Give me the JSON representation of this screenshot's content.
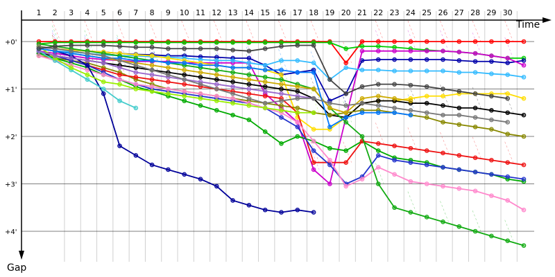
{
  "chart_data": {
    "type": "line",
    "title": "",
    "xlabel": "Time",
    "ylabel": "Gap",
    "y_inverted": true,
    "y_unit": "minutes",
    "ylim": [
      0,
      4.6
    ],
    "grid": true,
    "legend": "none",
    "x_ticks": [
      "1",
      "2",
      "3",
      "4",
      "5",
      "6",
      "7",
      "8",
      "9",
      "10",
      "11",
      "12",
      "13",
      "14",
      "15",
      "16",
      "17",
      "18",
      "19",
      "20",
      "21",
      "22",
      "23",
      "24",
      "25",
      "26",
      "27",
      "28",
      "29",
      "30"
    ],
    "y_ticks": [
      {
        "value": 0,
        "label": "+0'"
      },
      {
        "value": 1,
        "label": "+1'"
      },
      {
        "value": 2,
        "label": "+2'"
      },
      {
        "value": 3,
        "label": "+3'"
      },
      {
        "value": 4,
        "label": "+4'"
      }
    ],
    "series": [
      {
        "color": "#ff0000",
        "x": [
          1,
          2,
          3,
          4,
          5,
          6,
          7,
          8,
          9,
          10,
          11,
          12,
          13,
          14,
          15,
          16,
          17,
          18,
          19,
          20,
          21,
          22,
          23,
          24,
          25,
          26,
          27,
          28,
          29,
          30,
          31
        ],
        "y": [
          0,
          0,
          0,
          0,
          0,
          0,
          0,
          0,
          0,
          0,
          0,
          0,
          0,
          0,
          0,
          0,
          0,
          0,
          0,
          0.45,
          0,
          0,
          0,
          0,
          0,
          0,
          0,
          0,
          0,
          0,
          0
        ]
      },
      {
        "color": "#00cc00",
        "x": [
          1,
          2,
          3,
          4,
          5,
          6,
          7,
          8,
          9,
          10,
          11,
          12,
          13,
          14,
          15,
          16,
          17,
          18,
          19,
          20,
          21,
          22,
          23,
          24,
          25,
          26,
          27,
          28,
          29,
          30,
          31
        ],
        "y": [
          0.05,
          0.02,
          0.02,
          0.02,
          0.02,
          0.02,
          0.02,
          0.02,
          0.02,
          0.02,
          0.02,
          0.02,
          0.02,
          0.02,
          0.02,
          0.02,
          0.02,
          0.02,
          0.02,
          0.15,
          0.1,
          0.1,
          0.12,
          0.15,
          0.18,
          0.2,
          0.22,
          0.25,
          0.3,
          0.35,
          0.35
        ]
      },
      {
        "color": "#0000aa",
        "x": [
          1,
          2,
          3,
          4,
          5,
          6,
          7,
          8,
          9,
          10,
          11,
          12,
          13,
          14,
          15,
          16,
          17,
          18,
          19,
          20,
          21,
          22,
          23,
          24,
          25,
          26,
          27,
          28,
          29,
          30,
          31
        ],
        "y": [
          0.12,
          0.15,
          0.18,
          0.2,
          0.22,
          0.25,
          0.27,
          0.28,
          0.3,
          0.3,
          0.32,
          0.33,
          0.35,
          0.35,
          0.5,
          0.7,
          0.65,
          0.6,
          1.25,
          1.1,
          0.4,
          0.38,
          0.38,
          0.38,
          0.38,
          0.38,
          0.4,
          0.42,
          0.42,
          0.45,
          0.4
        ]
      },
      {
        "color": "#cc00cc",
        "x": [
          1,
          2,
          3,
          4,
          5,
          6,
          7,
          8,
          9,
          10,
          11,
          12,
          13,
          14,
          15,
          16,
          17,
          18,
          19,
          20,
          21,
          22,
          23,
          24,
          25,
          26,
          27,
          28,
          29,
          30,
          31
        ],
        "y": [
          0.2,
          0.25,
          0.3,
          0.35,
          0.38,
          0.4,
          0.42,
          0.42,
          0.42,
          0.45,
          0.45,
          0.45,
          0.45,
          0.45,
          1.1,
          1.4,
          1.7,
          2.7,
          3.0,
          1.6,
          0.2,
          0.2,
          0.2,
          0.2,
          0.2,
          0.2,
          0.22,
          0.25,
          0.3,
          0.35,
          0.5
        ]
      },
      {
        "color": "#33bbff",
        "x": [
          1,
          2,
          3,
          4,
          5,
          6,
          7,
          8,
          9,
          10,
          11,
          12,
          13,
          14,
          15,
          16,
          17,
          18,
          19,
          20,
          21,
          22,
          23,
          24,
          25,
          26,
          27,
          28,
          29,
          30,
          31
        ],
        "y": [
          0.15,
          0.2,
          0.22,
          0.25,
          0.28,
          0.3,
          0.3,
          0.32,
          0.33,
          0.35,
          0.38,
          0.4,
          0.4,
          0.45,
          0.5,
          0.4,
          0.4,
          0.45,
          0.8,
          0.55,
          0.6,
          0.6,
          0.62,
          0.62,
          0.62,
          0.62,
          0.65,
          0.65,
          0.68,
          0.7,
          0.75
        ]
      },
      {
        "color": "#ffdd00",
        "x": [
          1,
          2,
          3,
          4,
          5,
          6,
          7,
          8,
          9,
          10,
          11,
          12,
          13,
          14,
          15,
          16,
          17,
          18,
          19,
          20,
          21,
          22,
          23,
          24,
          25,
          26,
          27,
          28,
          29,
          30,
          31
        ],
        "y": [
          0.1,
          0.15,
          0.18,
          0.2,
          0.22,
          0.25,
          0.28,
          0.3,
          0.35,
          0.4,
          0.45,
          0.5,
          0.55,
          0.55,
          0.6,
          0.7,
          1.6,
          1.85,
          1.85,
          1.6,
          1.3,
          1.25,
          1.25,
          1.2,
          1.15,
          1.15,
          1.1,
          1.1,
          1.1,
          1.1,
          1.2
        ]
      },
      {
        "color": "#000000",
        "x": [
          1,
          2,
          3,
          4,
          5,
          6,
          7,
          8,
          9,
          10,
          11,
          12,
          13,
          14,
          15,
          16,
          17,
          18,
          19,
          20,
          21,
          22,
          23,
          24,
          25,
          26,
          27,
          28,
          29,
          30,
          31
        ],
        "y": [
          0.25,
          0.3,
          0.35,
          0.4,
          0.45,
          0.5,
          0.55,
          0.6,
          0.65,
          0.7,
          0.75,
          0.8,
          0.85,
          0.9,
          0.95,
          1.0,
          1.05,
          1.2,
          1.55,
          1.6,
          1.3,
          1.25,
          1.25,
          1.3,
          1.3,
          1.35,
          1.4,
          1.4,
          1.45,
          1.5,
          1.55
        ]
      },
      {
        "color": "#888800",
        "x": [
          1,
          2,
          3,
          4,
          5,
          6,
          7,
          8,
          9,
          10,
          11,
          12,
          13,
          14,
          15,
          16,
          17,
          18,
          19,
          20,
          21,
          22,
          23,
          24,
          25,
          26,
          27,
          28,
          29,
          30,
          31
        ],
        "y": [
          0.3,
          0.35,
          0.4,
          0.45,
          0.55,
          0.65,
          0.8,
          0.9,
          1.0,
          1.05,
          1.1,
          1.15,
          1.2,
          1.25,
          1.3,
          1.35,
          1.4,
          1.5,
          1.55,
          1.5,
          1.45,
          1.45,
          1.5,
          1.55,
          1.6,
          1.7,
          1.75,
          1.8,
          1.85,
          1.95,
          2.0
        ]
      },
      {
        "color": "#00aa00",
        "x": [
          1,
          2,
          3,
          4,
          5,
          6,
          7,
          8,
          9,
          10,
          11,
          12,
          13,
          14,
          15,
          16,
          17,
          18,
          19,
          20,
          21,
          22,
          23,
          24,
          25,
          26,
          27,
          28,
          29,
          30,
          31
        ],
        "y": [
          0.25,
          0.35,
          0.45,
          0.55,
          0.7,
          0.8,
          0.95,
          1.05,
          1.15,
          1.25,
          1.35,
          1.45,
          1.55,
          1.65,
          1.9,
          2.15,
          2.0,
          2.1,
          2.25,
          2.3,
          2.1,
          2.3,
          2.45,
          2.5,
          2.55,
          2.65,
          2.7,
          2.75,
          2.8,
          2.9,
          2.95
        ]
      },
      {
        "color": "#ee1111",
        "x": [
          1,
          2,
          3,
          4,
          5,
          6,
          7,
          8,
          9,
          10,
          11,
          12,
          13,
          14,
          15,
          16,
          17,
          18,
          19,
          20,
          21,
          22,
          23,
          24,
          25,
          26,
          27,
          28,
          29,
          30,
          31
        ],
        "y": [
          0.2,
          0.3,
          0.4,
          0.5,
          0.6,
          0.7,
          0.75,
          0.8,
          0.85,
          0.9,
          0.95,
          1.0,
          1.05,
          1.1,
          1.15,
          1.2,
          1.5,
          2.55,
          2.55,
          2.55,
          2.1,
          2.15,
          2.2,
          2.25,
          2.3,
          2.35,
          2.4,
          2.45,
          2.5,
          2.55,
          2.6
        ]
      },
      {
        "color": "#2233cc",
        "x": [
          1,
          2,
          3,
          4,
          5,
          6,
          7,
          8,
          9,
          10,
          11,
          12,
          13,
          14,
          15,
          16,
          17,
          18,
          19,
          20,
          21,
          22,
          23,
          24,
          25,
          26,
          27,
          28,
          29,
          30,
          31
        ],
        "y": [
          0.2,
          0.3,
          0.4,
          0.5,
          0.65,
          0.8,
          0.9,
          1.0,
          1.05,
          1.1,
          1.15,
          1.2,
          1.25,
          1.3,
          1.4,
          1.6,
          1.8,
          2.3,
          2.6,
          3.0,
          2.85,
          2.4,
          2.5,
          2.55,
          2.6,
          2.65,
          2.7,
          2.75,
          2.8,
          2.85,
          2.9
        ]
      },
      {
        "color": "#ff88cc",
        "x": [
          1,
          2,
          3,
          4,
          5,
          6,
          7,
          8,
          9,
          10,
          11,
          12,
          13,
          14,
          15,
          16,
          17,
          18,
          19,
          20,
          21,
          22,
          23,
          24,
          25,
          26,
          27,
          28,
          29,
          30,
          31
        ],
        "y": [
          0.3,
          0.4,
          0.5,
          0.6,
          0.7,
          0.8,
          0.9,
          0.95,
          1.0,
          1.05,
          1.1,
          1.15,
          1.2,
          1.3,
          1.4,
          1.5,
          1.7,
          2.1,
          2.5,
          3.05,
          2.9,
          2.65,
          2.8,
          2.95,
          3.0,
          3.05,
          3.1,
          3.15,
          3.25,
          3.35,
          3.55
        ]
      },
      {
        "color": "#11aa11",
        "x": [
          1,
          2,
          3,
          4,
          5,
          6,
          7,
          8,
          9,
          10,
          11,
          12,
          13,
          14,
          15,
          16,
          17,
          18,
          19,
          20,
          21,
          22,
          23,
          24,
          25,
          26,
          27,
          28,
          29,
          30,
          31
        ],
        "y": [
          0.05,
          0.1,
          0.15,
          0.2,
          0.25,
          0.3,
          0.35,
          0.4,
          0.45,
          0.5,
          0.55,
          0.6,
          0.65,
          0.7,
          0.75,
          0.8,
          0.9,
          1.0,
          1.4,
          1.7,
          2.0,
          3.0,
          3.5,
          3.6,
          3.7,
          3.8,
          3.9,
          4.0,
          4.1,
          4.2,
          4.3
        ]
      },
      {
        "color": "#000099",
        "x": [
          1,
          2,
          3,
          4,
          5,
          6,
          7,
          8,
          9,
          10,
          11,
          12,
          13,
          14,
          15,
          16,
          17,
          18
        ],
        "y": [
          0.15,
          0.2,
          0.3,
          0.5,
          1.1,
          2.2,
          2.4,
          2.6,
          2.7,
          2.8,
          2.9,
          3.05,
          3.35,
          3.45,
          3.55,
          3.6,
          3.55,
          3.6
        ]
      },
      {
        "color": "#44cccc",
        "x": [
          1,
          2,
          3,
          4,
          5,
          6,
          7
        ],
        "y": [
          0.2,
          0.4,
          0.6,
          0.8,
          1.0,
          1.25,
          1.4
        ]
      },
      {
        "color": "#99ee00",
        "x": [
          1,
          2,
          3,
          4,
          5,
          6,
          7,
          8,
          9,
          10,
          11,
          12,
          13,
          14,
          15,
          16,
          17,
          18
        ],
        "y": [
          0.1,
          0.35,
          0.55,
          0.7,
          0.85,
          0.9,
          1.0,
          1.05,
          1.1,
          1.15,
          1.2,
          1.25,
          1.3,
          1.35,
          1.4,
          1.45,
          1.5,
          1.5
        ]
      },
      {
        "color": "#9966cc",
        "x": [
          1,
          2,
          3,
          4,
          5,
          6,
          7,
          8,
          9,
          10,
          11,
          12,
          13,
          14,
          15,
          16,
          17,
          18
        ],
        "y": [
          0.2,
          0.3,
          0.35,
          0.4,
          0.45,
          0.55,
          0.65,
          0.7,
          0.75,
          0.8,
          0.85,
          0.9,
          0.95,
          1.0,
          1.05,
          1.1,
          1.15,
          1.2
        ]
      },
      {
        "color": "#ccaa00",
        "x": [
          1,
          2,
          3,
          4,
          5,
          6,
          7,
          8,
          9,
          10,
          11,
          12,
          13,
          14,
          15,
          16,
          17,
          18,
          19,
          20,
          21,
          22,
          23,
          24
        ],
        "y": [
          0.15,
          0.2,
          0.25,
          0.3,
          0.35,
          0.4,
          0.45,
          0.5,
          0.55,
          0.6,
          0.65,
          0.7,
          0.75,
          0.8,
          0.85,
          0.9,
          0.95,
          1.0,
          1.4,
          1.5,
          1.2,
          1.15,
          1.2,
          1.25
        ]
      },
      {
        "color": "#0077ff",
        "x": [
          1,
          2,
          3,
          4,
          5,
          6,
          7,
          8,
          9,
          10,
          11,
          12,
          13,
          14,
          15,
          16,
          17,
          18,
          19,
          20,
          21,
          22,
          23,
          24
        ],
        "y": [
          0.15,
          0.2,
          0.25,
          0.3,
          0.35,
          0.35,
          0.4,
          0.4,
          0.45,
          0.45,
          0.5,
          0.5,
          0.55,
          0.55,
          0.6,
          0.6,
          0.65,
          0.65,
          1.8,
          1.6,
          1.5,
          1.5,
          1.5,
          1.55
        ]
      },
      {
        "color": "#777777",
        "x": [
          1,
          2,
          3,
          4,
          5,
          6,
          7,
          8,
          9,
          10,
          11,
          12,
          13,
          14,
          15,
          16,
          17,
          18,
          19,
          20,
          21,
          22,
          23,
          24,
          25,
          26,
          27,
          28,
          29,
          30
        ],
        "y": [
          0.1,
          0.15,
          0.2,
          0.25,
          0.3,
          0.4,
          0.5,
          0.6,
          0.7,
          0.8,
          0.9,
          1.0,
          1.1,
          1.2,
          1.3,
          1.25,
          1.2,
          1.2,
          1.3,
          1.35,
          1.3,
          1.35,
          1.4,
          1.45,
          1.5,
          1.55,
          1.55,
          1.6,
          1.65,
          1.7
        ]
      },
      {
        "color": "#444444",
        "x": [
          1,
          2,
          3,
          4,
          5,
          6,
          7,
          8,
          9,
          10,
          11,
          12,
          13,
          14,
          15,
          16,
          17,
          18,
          19,
          20,
          21,
          22,
          23,
          24,
          25,
          26,
          27,
          28,
          29,
          30
        ],
        "y": [
          0.15,
          0.1,
          0.08,
          0.08,
          0.08,
          0.1,
          0.12,
          0.12,
          0.15,
          0.15,
          0.15,
          0.15,
          0.18,
          0.2,
          0.15,
          0.1,
          0.08,
          0.08,
          0.8,
          1.1,
          0.95,
          0.9,
          0.9,
          0.92,
          0.95,
          1.0,
          1.05,
          1.1,
          1.15,
          1.2
        ]
      }
    ]
  }
}
